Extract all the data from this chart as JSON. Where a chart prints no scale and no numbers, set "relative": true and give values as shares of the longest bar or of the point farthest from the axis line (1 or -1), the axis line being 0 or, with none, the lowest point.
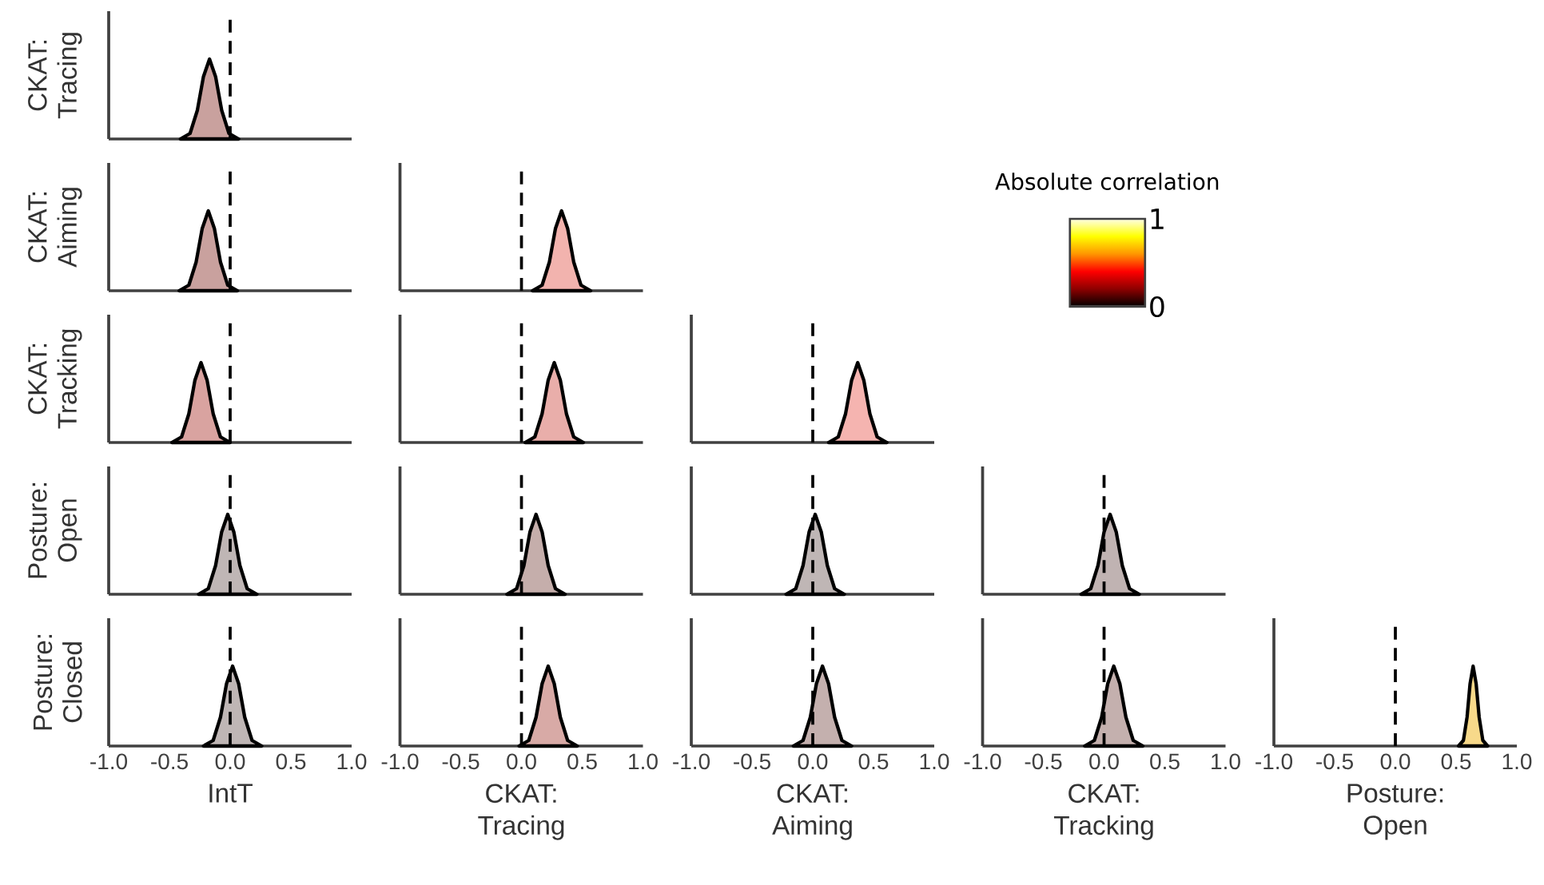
{
  "chart_data": [
    {
      "type": "area",
      "relative": true,
      "ylabel": "CKAT: Tracing",
      "color": "#c9a19e",
      "x": [
        -0.41,
        -0.33,
        -0.27,
        -0.22,
        -0.17,
        -0.12,
        -0.07,
        -0.01,
        0.07
      ],
      "values": [
        0,
        0.07,
        0.36,
        0.78,
        1,
        0.78,
        0.36,
        0.07,
        0
      ],
      "xlim": [
        -1,
        1
      ],
      "tick_labels": false,
      "ref_lines": [
        {
          "axis": "x",
          "value": 0,
          "line_style": "dashed"
        }
      ]
    },
    {
      "type": "area",
      "relative": true,
      "ylabel": "CKAT: Aiming",
      "color": "#c9a19e",
      "x": [
        -0.42,
        -0.34,
        -0.28,
        -0.23,
        -0.18,
        -0.13,
        -0.08,
        -0.02,
        0.06
      ],
      "values": [
        0,
        0.07,
        0.36,
        0.78,
        1,
        0.78,
        0.36,
        0.07,
        0
      ],
      "xlim": [
        -1,
        1
      ],
      "tick_labels": false,
      "ref_lines": [
        {
          "axis": "x",
          "value": 0,
          "line_style": "dashed"
        }
      ]
    },
    {
      "type": "area",
      "relative": true,
      "color": "#f2b3ae",
      "x": [
        0.09,
        0.17,
        0.23,
        0.28,
        0.33,
        0.38,
        0.43,
        0.49,
        0.57
      ],
      "values": [
        0,
        0.07,
        0.36,
        0.78,
        1,
        0.78,
        0.36,
        0.07,
        0
      ],
      "xlim": [
        -1,
        1
      ],
      "tick_labels": false,
      "ref_lines": [
        {
          "axis": "x",
          "value": 0,
          "line_style": "dashed"
        }
      ],
      "clabel": "Absolute correlation",
      "clim": [
        0,
        1
      ],
      "cticks": [
        0,
        1
      ]
    },
    {
      "type": "area",
      "relative": true,
      "ylabel": "CKAT: Tracking",
      "color": "#d9a3a0",
      "x": [
        -0.48,
        -0.4,
        -0.34,
        -0.29,
        -0.24,
        -0.19,
        -0.14,
        -0.08,
        0.0
      ],
      "values": [
        0,
        0.07,
        0.36,
        0.78,
        1,
        0.78,
        0.36,
        0.07,
        0
      ],
      "xlim": [
        -1,
        1
      ],
      "tick_labels": false,
      "ref_lines": [
        {
          "axis": "x",
          "value": 0,
          "line_style": "dashed"
        }
      ]
    },
    {
      "type": "area",
      "relative": true,
      "color": "#e9aeaa",
      "x": [
        0.03,
        0.11,
        0.17,
        0.22,
        0.27,
        0.32,
        0.37,
        0.43,
        0.51
      ],
      "values": [
        0,
        0.07,
        0.36,
        0.78,
        1,
        0.78,
        0.36,
        0.07,
        0
      ],
      "xlim": [
        -1,
        1
      ],
      "tick_labels": false,
      "ref_lines": [
        {
          "axis": "x",
          "value": 0,
          "line_style": "dashed"
        }
      ]
    },
    {
      "type": "area",
      "relative": true,
      "color": "#f5b4b0",
      "x": [
        0.13,
        0.21,
        0.27,
        0.32,
        0.37,
        0.42,
        0.47,
        0.53,
        0.61
      ],
      "values": [
        0,
        0.07,
        0.36,
        0.78,
        1,
        0.78,
        0.36,
        0.07,
        0
      ],
      "xlim": [
        -1,
        1
      ],
      "tick_labels": false,
      "ref_lines": [
        {
          "axis": "x",
          "value": 0,
          "line_style": "dashed"
        }
      ]
    },
    {
      "type": "area",
      "relative": true,
      "ylabel": "Posture: Open",
      "color": "#bfb6b5",
      "x": [
        -0.26,
        -0.18,
        -0.12,
        -0.07,
        -0.02,
        0.03,
        0.08,
        0.14,
        0.22
      ],
      "values": [
        0,
        0.07,
        0.36,
        0.78,
        1,
        0.78,
        0.36,
        0.07,
        0
      ],
      "xlim": [
        -1,
        1
      ],
      "tick_labels": false,
      "ref_lines": [
        {
          "axis": "x",
          "value": 0,
          "line_style": "dashed"
        }
      ]
    },
    {
      "type": "area",
      "relative": true,
      "color": "#c5aeab",
      "x": [
        -0.12,
        -0.04,
        0.02,
        0.07,
        0.12,
        0.17,
        0.22,
        0.28,
        0.36
      ],
      "values": [
        0,
        0.07,
        0.36,
        0.78,
        1,
        0.78,
        0.36,
        0.07,
        0
      ],
      "xlim": [
        -1,
        1
      ],
      "tick_labels": false,
      "ref_lines": [
        {
          "axis": "x",
          "value": 0,
          "line_style": "dashed"
        }
      ]
    },
    {
      "type": "area",
      "relative": true,
      "color": "#bfb6b5",
      "x": [
        -0.22,
        -0.14,
        -0.08,
        -0.03,
        0.02,
        0.07,
        0.12,
        0.18,
        0.26
      ],
      "values": [
        0,
        0.07,
        0.36,
        0.78,
        1,
        0.78,
        0.36,
        0.07,
        0
      ],
      "xlim": [
        -1,
        1
      ],
      "tick_labels": false,
      "ref_lines": [
        {
          "axis": "x",
          "value": 0,
          "line_style": "dashed"
        }
      ]
    },
    {
      "type": "area",
      "relative": true,
      "color": "#c0b3b2",
      "x": [
        -0.19,
        -0.11,
        -0.05,
        0.0,
        0.05,
        0.1,
        0.15,
        0.21,
        0.29
      ],
      "values": [
        0,
        0.07,
        0.36,
        0.78,
        1,
        0.78,
        0.36,
        0.07,
        0
      ],
      "xlim": [
        -1,
        1
      ],
      "tick_labels": false,
      "ref_lines": [
        {
          "axis": "x",
          "value": 0,
          "line_style": "dashed"
        }
      ]
    },
    {
      "type": "area",
      "relative": true,
      "ylabel": "Posture: Closed",
      "xlabel": "IntT",
      "color": "#bfb6b5",
      "x": [
        -0.22,
        -0.14,
        -0.08,
        -0.03,
        0.02,
        0.07,
        0.12,
        0.18,
        0.26
      ],
      "values": [
        0,
        0.07,
        0.36,
        0.78,
        1,
        0.78,
        0.36,
        0.07,
        0
      ],
      "xlim": [
        -1,
        1
      ],
      "xticks": [
        {
          "value": -1,
          "label": "-1.0"
        },
        {
          "value": -0.5,
          "label": "-0.5"
        },
        {
          "value": 0,
          "label": "0.0"
        },
        {
          "value": 0.5,
          "label": "0.5"
        },
        {
          "value": 1,
          "label": "1.0"
        }
      ],
      "tick_labels": "x",
      "ref_lines": [
        {
          "axis": "x",
          "value": 0,
          "line_style": "dashed"
        }
      ]
    },
    {
      "type": "area",
      "relative": true,
      "xlabel": "CKAT: Tracing",
      "color": "#d8aaa6",
      "x": [
        -0.02,
        0.06,
        0.12,
        0.17,
        0.22,
        0.27,
        0.32,
        0.38,
        0.46
      ],
      "values": [
        0,
        0.07,
        0.36,
        0.78,
        1,
        0.78,
        0.36,
        0.07,
        0
      ],
      "xlim": [
        -1,
        1
      ],
      "xticks": [
        {
          "value": -1,
          "label": "-1.0"
        },
        {
          "value": -0.5,
          "label": "-0.5"
        },
        {
          "value": 0,
          "label": "0.0"
        },
        {
          "value": 0.5,
          "label": "0.5"
        },
        {
          "value": 1,
          "label": "1.0"
        }
      ],
      "tick_labels": "x",
      "ref_lines": [
        {
          "axis": "x",
          "value": 0,
          "line_style": "dashed"
        }
      ]
    },
    {
      "type": "area",
      "relative": true,
      "xlabel": "CKAT: Aiming",
      "color": "#c4b0ae",
      "x": [
        -0.16,
        -0.08,
        -0.02,
        0.03,
        0.08,
        0.13,
        0.18,
        0.24,
        0.32
      ],
      "values": [
        0,
        0.07,
        0.36,
        0.78,
        1,
        0.78,
        0.36,
        0.07,
        0
      ],
      "xlim": [
        -1,
        1
      ],
      "xticks": [
        {
          "value": -1,
          "label": "-1.0"
        },
        {
          "value": -0.5,
          "label": "-0.5"
        },
        {
          "value": 0,
          "label": "0.0"
        },
        {
          "value": 0.5,
          "label": "0.5"
        },
        {
          "value": 1,
          "label": "1.0"
        }
      ],
      "tick_labels": "x",
      "ref_lines": [
        {
          "axis": "x",
          "value": 0,
          "line_style": "dashed"
        }
      ]
    },
    {
      "type": "area",
      "relative": true,
      "xlabel": "CKAT: Tracking",
      "color": "#c4b0ae",
      "x": [
        -0.16,
        -0.08,
        -0.02,
        0.03,
        0.08,
        0.13,
        0.18,
        0.24,
        0.32
      ],
      "values": [
        0,
        0.07,
        0.36,
        0.78,
        1,
        0.78,
        0.36,
        0.07,
        0
      ],
      "xlim": [
        -1,
        1
      ],
      "xticks": [
        {
          "value": -1,
          "label": "-1.0"
        },
        {
          "value": -0.5,
          "label": "-0.5"
        },
        {
          "value": 0,
          "label": "0.0"
        },
        {
          "value": 0.5,
          "label": "0.5"
        },
        {
          "value": 1,
          "label": "1.0"
        }
      ],
      "tick_labels": "x",
      "ref_lines": [
        {
          "axis": "x",
          "value": 0,
          "line_style": "dashed"
        }
      ]
    },
    {
      "type": "area",
      "relative": true,
      "xlabel": "Posture: Open",
      "color": "#f7d98a",
      "x": [
        0.52,
        0.56,
        0.59,
        0.615,
        0.64,
        0.665,
        0.69,
        0.72,
        0.76
      ],
      "values": [
        0,
        0.07,
        0.36,
        0.78,
        1,
        0.78,
        0.36,
        0.07,
        0
      ],
      "xlim": [
        -1,
        1
      ],
      "xticks": [
        {
          "value": -1,
          "label": "-1.0"
        },
        {
          "value": -0.5,
          "label": "-0.5"
        },
        {
          "value": 0,
          "label": "0.0"
        },
        {
          "value": 0.5,
          "label": "0.5"
        },
        {
          "value": 1,
          "label": "1.0"
        }
      ],
      "tick_labels": "x",
      "ref_lines": [
        {
          "axis": "x",
          "value": 0,
          "line_style": "dashed"
        }
      ]
    }
  ]
}
